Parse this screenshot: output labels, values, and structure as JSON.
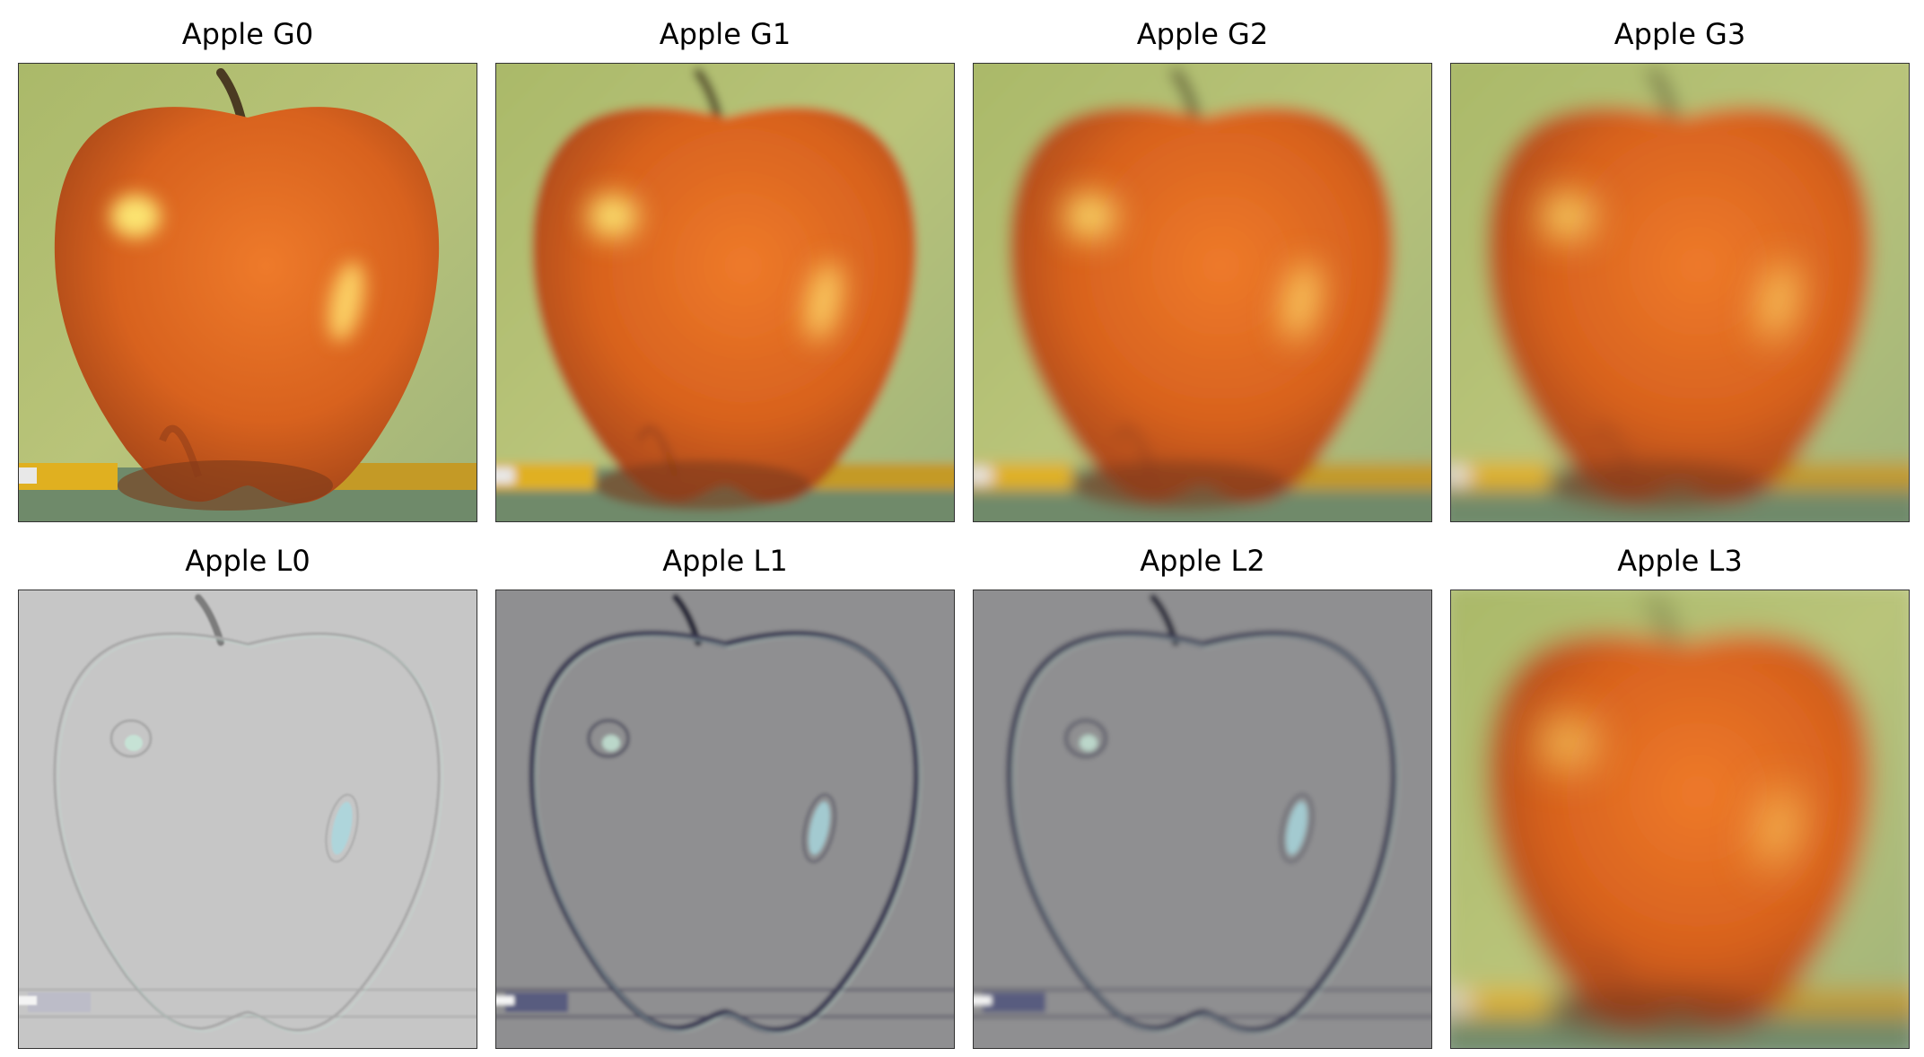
{
  "panels": [
    {
      "title": "Apple G0",
      "kind": "gauss",
      "blur": 0
    },
    {
      "title": "Apple G1",
      "kind": "gauss",
      "blur": 5
    },
    {
      "title": "Apple G2",
      "kind": "gauss",
      "blur": 8
    },
    {
      "title": "Apple G3",
      "kind": "gauss",
      "blur": 11
    },
    {
      "title": "Apple L0",
      "kind": "lap0",
      "blur": 1
    },
    {
      "title": "Apple L1",
      "kind": "lapdark",
      "blur": 2
    },
    {
      "title": "Apple L2",
      "kind": "lapdark",
      "blur": 3
    },
    {
      "title": "Apple L3",
      "kind": "gauss",
      "blur": 15
    }
  ],
  "colors": {
    "background": "#b9c47a",
    "apple": "#d8621e",
    "apple_shadow": "#7a3a1a",
    "highlight": "#fff27a",
    "pencil": "#e0b020",
    "laplacian_light": "#c6c6c6",
    "laplacian_dark": "#8f8f91"
  }
}
